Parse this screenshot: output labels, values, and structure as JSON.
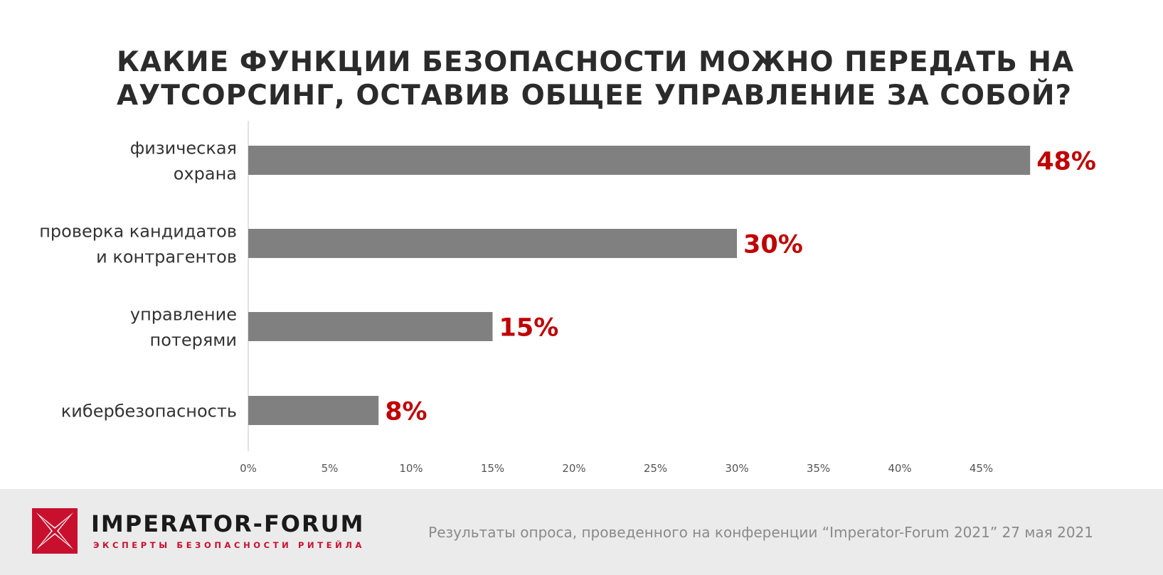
{
  "colors": {
    "bar": "#808080",
    "value_label": "#c00000",
    "axis_line": "#d9d9d9",
    "category_text": "#333333",
    "tick_text": "#555555",
    "footer_bg": "#ebebeb",
    "brand_red": "#c8102e"
  },
  "chart_data": {
    "type": "bar",
    "orientation": "horizontal",
    "title": "КАКИЕ ФУНКЦИИ БЕЗОПАСНОСТИ МОЖНО ПЕРЕДАТЬ НА АУТСОРСИНГ, ОСТАВИВ ОБЩЕЕ УПРАВЛЕНИЕ ЗА СОБОЙ?",
    "title_lines": [
      "КАКИЕ ФУНКЦИИ БЕЗОПАСНОСТИ МОЖНО ПЕРЕДАТЬ НА",
      "АУТСОРСИНГ, ОСТАВИВ ОБЩЕЕ УПРАВЛЕНИЕ ЗА СОБОЙ?"
    ],
    "categories": [
      [
        "физическая",
        "охрана"
      ],
      [
        "проверка кандидатов",
        "и контрагентов"
      ],
      [
        "управление",
        "потерями"
      ],
      [
        "кибербезопасность"
      ]
    ],
    "values": [
      48,
      30,
      15,
      8
    ],
    "value_labels": [
      "48%",
      "30%",
      "15%",
      "8%"
    ],
    "xticks": [
      "0%",
      "5%",
      "10%",
      "15%",
      "20%",
      "25%",
      "30%",
      "35%",
      "40%",
      "45%"
    ],
    "xlim": [
      0,
      47.5
    ],
    "grid": false,
    "legend": "none"
  },
  "footer": {
    "brand_name": "IMPERATOR-FORUM",
    "brand_tagline": "ЭКСПЕРТЫ БЕЗОПАСНОСТИ РИТЕЙЛА",
    "logo_icon": "x-cross-logo-icon",
    "source_note": "Результаты опроса, проведенного на конференции “Imperator-Forum 2021” 27 мая 2021"
  }
}
